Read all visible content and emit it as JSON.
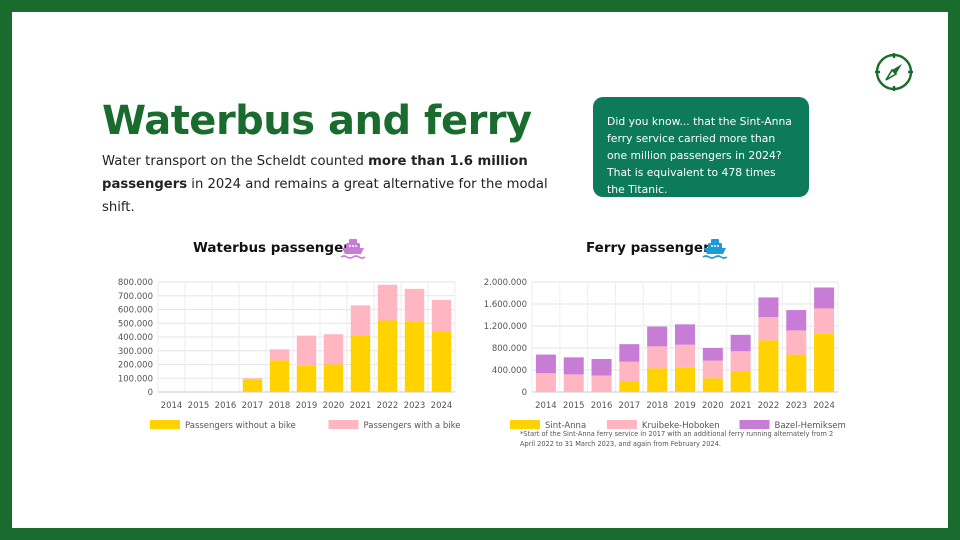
{
  "slide": {
    "title": "Waterbus and ferry",
    "intro_pre": "Water transport on the Scheldt counted ",
    "intro_bold": "more than 1.6 million passengers",
    "intro_post": " in 2024 and remains a great alternative for the modal shift.",
    "did_you_know": "Did you know... that the Sint-Anna ferry service carried more than one million passengers in 2024? That is equivalent to 478 times the Titanic.",
    "footnote": "*Start of the Sint-Anna ferry service in 2017 with an additional ferry running alternately from 2 April 2022 to 31 March 2023, and again from February 2024.",
    "icons": {
      "compass": "compass-icon",
      "waterbus": "ship-icon",
      "ferry": "ship-icon"
    },
    "colors": {
      "brand_green": "#1a6b2e",
      "callout_bg": "#0d7a5a",
      "waterbus_icon": "#c77dd6",
      "ferry_icon": "#1e9ad6"
    }
  },
  "chart_data": [
    {
      "type": "bar",
      "stacked": true,
      "title": "Waterbus passengers",
      "categories": [
        "2014",
        "2015",
        "2016",
        "2017",
        "2018",
        "2019",
        "2020",
        "2021",
        "2022",
        "2023",
        "2024"
      ],
      "series": [
        {
          "name": "Passengers without a bike",
          "color": "#ffd200",
          "values": [
            0,
            0,
            0,
            90000,
            230000,
            190000,
            200000,
            410000,
            520000,
            510000,
            440000
          ]
        },
        {
          "name": "Passengers with a bike",
          "color": "#ffb6c1",
          "values": [
            0,
            0,
            0,
            10000,
            80000,
            220000,
            220000,
            220000,
            260000,
            240000,
            230000
          ]
        }
      ],
      "ylim": [
        0,
        800000
      ],
      "yticks": [
        0,
        100000,
        200000,
        300000,
        400000,
        500000,
        600000,
        700000,
        800000
      ],
      "ytick_labels": [
        "0",
        "100.000",
        "200.000",
        "300.000",
        "400.000",
        "500.000",
        "600.000",
        "700.000",
        "800.000"
      ],
      "grid": true,
      "legend": "bottom"
    },
    {
      "type": "bar",
      "stacked": true,
      "title": "Ferry passengers",
      "categories": [
        "2014",
        "2015",
        "2016",
        "2017",
        "2018",
        "2019",
        "2020",
        "2021",
        "2022",
        "2023",
        "2024"
      ],
      "series": [
        {
          "name": "Sint-Anna",
          "color": "#ffd200",
          "values": [
            0,
            0,
            0,
            200000,
            430000,
            440000,
            250000,
            380000,
            940000,
            680000,
            1060000
          ]
        },
        {
          "name": "Kruibeke-Hoboken",
          "color": "#ffb6c1",
          "values": [
            340000,
            320000,
            300000,
            350000,
            400000,
            420000,
            320000,
            360000,
            420000,
            440000,
            460000
          ]
        },
        {
          "name": "Bazel-Hemiksem",
          "color": "#c77dd6",
          "values": [
            340000,
            310000,
            300000,
            320000,
            360000,
            370000,
            230000,
            300000,
            360000,
            370000,
            380000
          ]
        }
      ],
      "ylim": [
        0,
        2000000
      ],
      "yticks": [
        0,
        400000,
        800000,
        1200000,
        1600000,
        2000000
      ],
      "ytick_labels": [
        "0",
        "400.000",
        "800.000",
        "1.200.000",
        "1.600.000",
        "2.000.000"
      ],
      "grid": true,
      "legend": "bottom"
    }
  ]
}
